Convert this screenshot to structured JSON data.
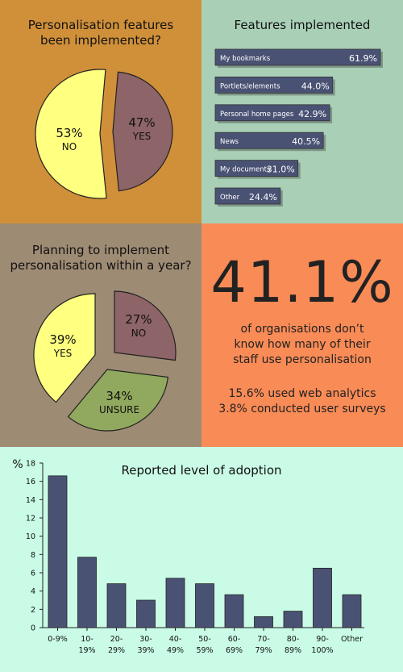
{
  "colors": {
    "panel1_bg": "#d0903a",
    "panel2_bg": "#a9cfb7",
    "panel3_bg": "#9e8b74",
    "panel4_bg": "#f98b56",
    "panel5_bg": "#c9fbe6",
    "pie_yes": "#ffff80",
    "pie_no": "#8d6467",
    "pie_unsure": "#91a95e",
    "bar_fill": "#4a5274"
  },
  "panel1": {
    "title_line1": "Personalisation features",
    "title_line2": "been implemented?"
  },
  "panel2": {
    "title": "Features implemented"
  },
  "panel3": {
    "title_line1": "Planning to implement",
    "title_line2": "personalisation within a year?"
  },
  "panel4": {
    "big_stat": "41.1%",
    "line1": "of organisations don’t",
    "line2": "know how many of their",
    "line3": "staff use personalisation",
    "stat2": "15.6% used web analytics",
    "stat3": "3.8% conducted user surveys"
  },
  "chart_data": [
    {
      "type": "pie",
      "title": "Personalisation features been implemented?",
      "slices": [
        {
          "label": "NO",
          "value": 53,
          "value_label": "53%",
          "color": "#ffff80"
        },
        {
          "label": "YES",
          "value": 47,
          "value_label": "47%",
          "color": "#8d6467"
        }
      ]
    },
    {
      "type": "bar",
      "orientation": "horizontal",
      "title": "Features implemented",
      "categories": [
        "My bookmarks",
        "Portlets/elements",
        "Personal home pages",
        "News",
        "My documents",
        "Other"
      ],
      "values": [
        61.9,
        44.0,
        42.9,
        40.5,
        31.0,
        24.4
      ],
      "value_labels": [
        "61.9%",
        "44.0%",
        "42.9%",
        "40.5%",
        "31.0%",
        "24.4%"
      ]
    },
    {
      "type": "pie",
      "title": "Planning to implement personalisation within a year?",
      "slices": [
        {
          "label": "NO",
          "value": 27,
          "value_label": "27%",
          "color": "#8d6467"
        },
        {
          "label": "UNSURE",
          "value": 34,
          "value_label": "34%",
          "color": "#91a95e"
        },
        {
          "label": "YES",
          "value": 39,
          "value_label": "39%",
          "color": "#ffff80"
        }
      ]
    },
    {
      "type": "bar",
      "title": "Reported level of adoption",
      "ylabel": "%",
      "ylim": [
        0,
        18
      ],
      "yticks": [
        0,
        2,
        4,
        6,
        8,
        10,
        12,
        14,
        16,
        18
      ],
      "categories": [
        "0-9%",
        "10-19%",
        "20-29%",
        "30-39%",
        "40-49%",
        "50-59%",
        "60-69%",
        "70-79%",
        "80-89%",
        "90-100%",
        "Other"
      ],
      "category_lines": [
        [
          "0-9%"
        ],
        [
          "10-",
          "19%"
        ],
        [
          "20-",
          "29%"
        ],
        [
          "30-",
          "39%"
        ],
        [
          "40-",
          "49%"
        ],
        [
          "50-",
          "59%"
        ],
        [
          "60-",
          "69%"
        ],
        [
          "70-",
          "79%"
        ],
        [
          "80-",
          "89%"
        ],
        [
          "90-",
          "100%"
        ],
        [
          "Other"
        ]
      ],
      "values": [
        16.6,
        7.7,
        4.8,
        3.0,
        5.4,
        4.8,
        3.6,
        1.2,
        1.8,
        6.5,
        3.6
      ],
      "grid": false
    }
  ]
}
